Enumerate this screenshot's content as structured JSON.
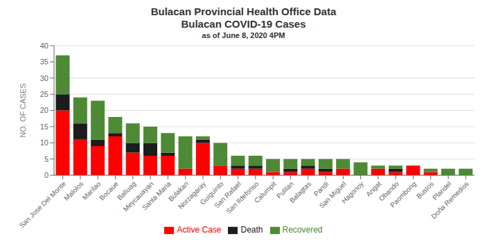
{
  "chart_data": {
    "type": "bar",
    "title": "Bulacan Provincial Health Office Data",
    "subtitle": "Bulacan COVID-19 Cases",
    "annotations": [
      "as of June 8, 2020 4PM"
    ],
    "categories": [
      "San Jose Del Monte",
      "Malolos",
      "Marilao",
      "Bocaue",
      "Baliuag",
      "Meycauayan",
      "Santa Maria",
      "Bulakan",
      "Norzagaray",
      "Guiguinto",
      "San Rafael",
      "San Ildefonso",
      "Calumpit",
      "Pulilan",
      "Balagtas",
      "Pandi",
      "San Miguel",
      "Hagonoy",
      "Angat",
      "Obando",
      "Paombong",
      "Bustos",
      "Plaridel",
      "Doña Remedios"
    ],
    "series": [
      {
        "name": "Active Case",
        "color": "#FF0000",
        "values": [
          20,
          11,
          9,
          12,
          7,
          6,
          6,
          2,
          10,
          3,
          2,
          2,
          1,
          1,
          2,
          1,
          2,
          0,
          2,
          1,
          3,
          1,
          0,
          0
        ]
      },
      {
        "name": "Death",
        "color": "#1C1C1C",
        "values": [
          5,
          5,
          2,
          1,
          3,
          4,
          1,
          0,
          1,
          0,
          1,
          1,
          0,
          1,
          1,
          1,
          0,
          0,
          0,
          1,
          0,
          0,
          0,
          0
        ]
      },
      {
        "name": "Recovered",
        "color": "#4E8A35",
        "values": [
          12,
          8,
          12,
          5,
          6,
          5,
          6,
          10,
          1,
          7,
          3,
          3,
          4,
          3,
          2,
          3,
          3,
          4,
          1,
          1,
          0,
          1,
          2,
          2
        ]
      }
    ],
    "ylabel": "NO. OF CASES",
    "ylim": [
      0,
      40
    ],
    "yticks": [
      0,
      5,
      10,
      15,
      20,
      25,
      30,
      35,
      40
    ],
    "stacked": true,
    "grid": true,
    "legend": "bottom"
  }
}
